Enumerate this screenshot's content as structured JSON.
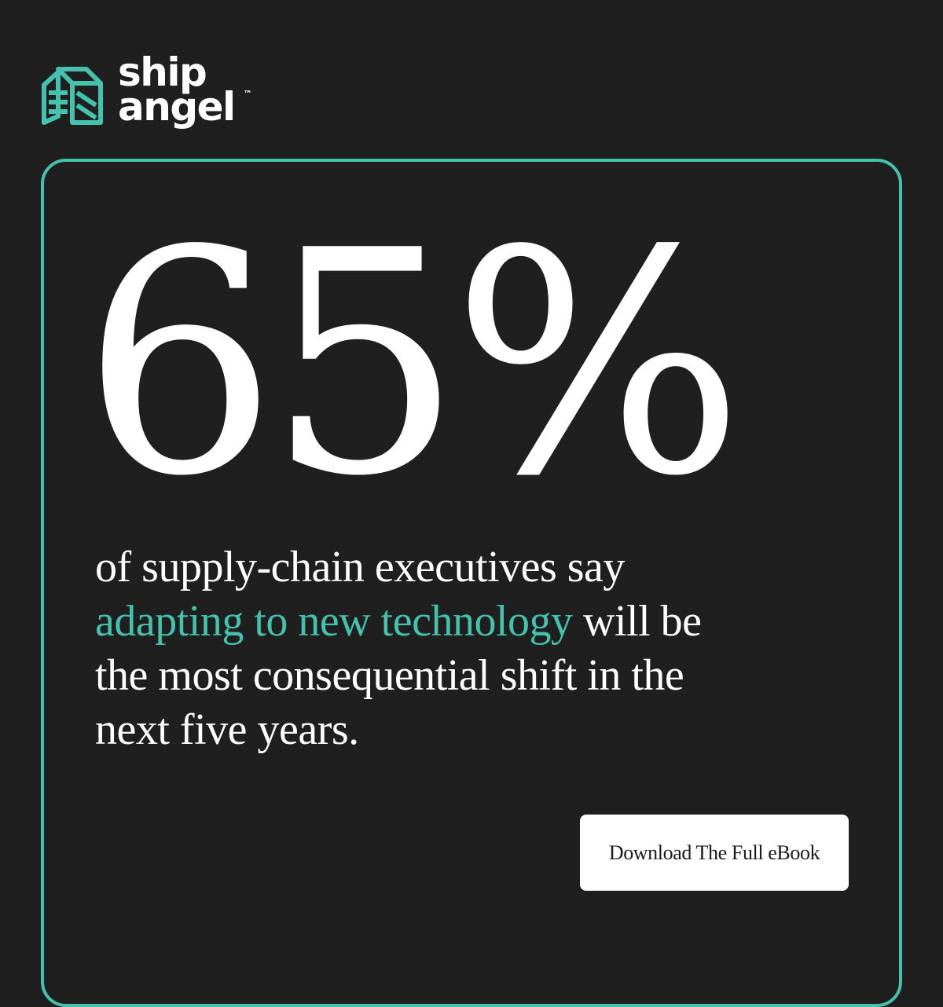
{
  "brand": {
    "name_line1": "ship",
    "name_line2": "angel",
    "trademark": "™",
    "accent_color": "#45c1ae",
    "background_color": "#1f1f1f"
  },
  "stat": {
    "value": "65%"
  },
  "body": {
    "line1": "of supply-chain executives say",
    "line2_highlight": "adapting to new technology",
    "line2_rest": " will be",
    "line3": "the most consequential shift in the",
    "line4": "next five years."
  },
  "cta": {
    "label": "Download The Full eBook"
  },
  "icons": {
    "logo": "ship-angel-logo-icon"
  }
}
